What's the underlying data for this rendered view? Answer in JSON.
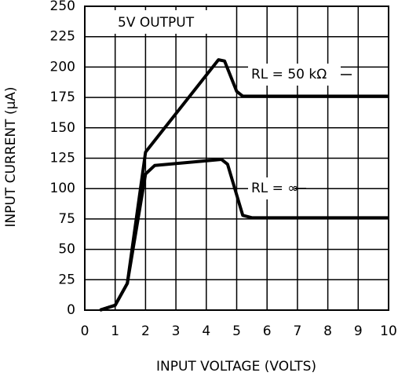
{
  "chart_data": {
    "type": "line",
    "annotation": "5V OUTPUT",
    "x_label": "INPUT VOLTAGE (VOLTS)",
    "y_label": "INPUT CURRENT (µA)",
    "series": [
      {
        "name": "RL = 50 kΩ",
        "color": "#000000",
        "x": [
          0.5,
          1,
          1.4,
          2,
          4.4,
          4.6,
          5,
          5.2,
          10
        ],
        "values": [
          0,
          4,
          22,
          130,
          206,
          205,
          180,
          176,
          176
        ]
      },
      {
        "name": "RL = ∞",
        "color": "#000000",
        "x": [
          0.5,
          1,
          1.4,
          2,
          2.3,
          4.5,
          4.7,
          5.2,
          5.5,
          10
        ],
        "values": [
          0,
          4,
          22,
          112,
          119,
          124,
          120,
          78,
          76,
          76
        ]
      }
    ],
    "xlim": [
      0,
      10
    ],
    "xticks": [
      0,
      1,
      2,
      3,
      4,
      5,
      6,
      7,
      8,
      9,
      10
    ],
    "ylim": [
      0,
      250
    ],
    "yticks": [
      0,
      25,
      50,
      75,
      100,
      125,
      150,
      175,
      200,
      225,
      250
    ],
    "grid": true
  }
}
